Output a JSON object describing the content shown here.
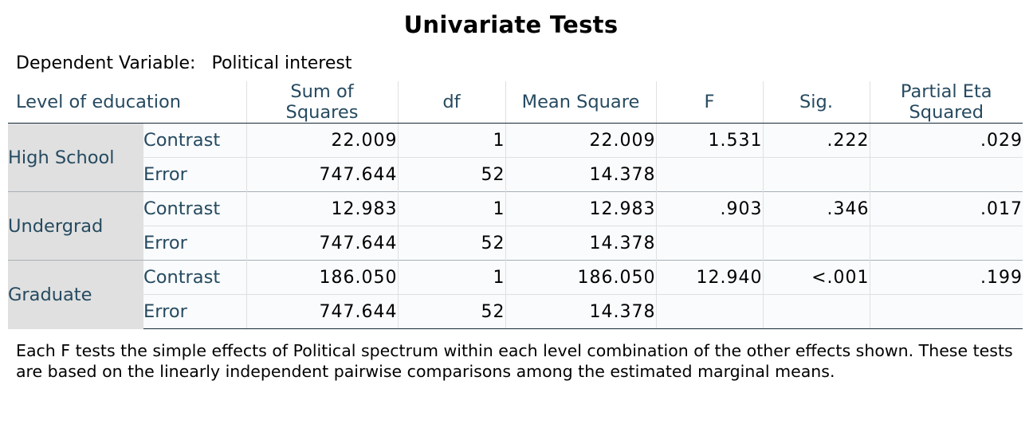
{
  "title": "Univariate Tests",
  "dependent_variable": {
    "label": "Dependent Variable:",
    "value": "Political interest"
  },
  "table": {
    "headers": {
      "level": "Level of education",
      "sum_of_squares_line1": "Sum of",
      "sum_of_squares_line2": "Squares",
      "df": "df",
      "mean_square": "Mean Square",
      "f": "F",
      "sig": "Sig.",
      "partial_eta_line1": "Partial Eta",
      "partial_eta_line2": "Squared"
    },
    "groups": [
      {
        "label": "High School",
        "contrast": {
          "label": "Contrast",
          "ss": "22.009",
          "df": "1",
          "ms": "22.009",
          "f": "1.531",
          "sig": ".222",
          "eta": ".029"
        },
        "error": {
          "label": "Error",
          "ss": "747.644",
          "df": "52",
          "ms": "14.378"
        }
      },
      {
        "label": "Undergrad",
        "contrast": {
          "label": "Contrast",
          "ss": "12.983",
          "df": "1",
          "ms": "12.983",
          "f": ".903",
          "sig": ".346",
          "eta": ".017"
        },
        "error": {
          "label": "Error",
          "ss": "747.644",
          "df": "52",
          "ms": "14.378"
        }
      },
      {
        "label": "Graduate",
        "contrast": {
          "label": "Contrast",
          "ss": "186.050",
          "df": "1",
          "ms": "186.050",
          "f": "12.940",
          "sig": "<.001",
          "eta": ".199"
        },
        "error": {
          "label": "Error",
          "ss": "747.644",
          "df": "52",
          "ms": "14.378"
        }
      }
    ]
  },
  "footnote": "Each F tests the simple effects of Political spectrum within each level combination of the other effects shown. These tests are based on the linearly independent pairwise comparisons among the estimated marginal means.",
  "colors": {
    "header_text": "#264a60",
    "row_label_bg": "#e0e0e0",
    "cell_bg": "#f9fbfc",
    "rule": "#152935"
  }
}
